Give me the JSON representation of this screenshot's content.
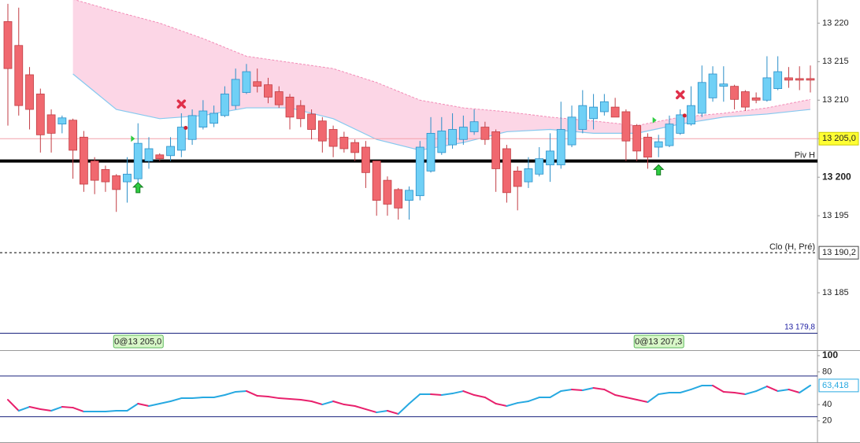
{
  "chart_data": {
    "type": "candlestick",
    "ylim": [
      13179.8,
      13223.0
    ],
    "yticks": [
      {
        "value": 13220,
        "label": "13 220"
      },
      {
        "value": 13215,
        "label": "13 215"
      },
      {
        "value": 13210,
        "label": "13 210"
      },
      {
        "value": 13205,
        "label": "13 205"
      },
      {
        "value": 13200,
        "label": "13 200"
      },
      {
        "value": 13195,
        "label": "13 195"
      },
      {
        "value": 13185,
        "label": "13 185"
      }
    ],
    "scale_min_label": "13 179,8",
    "up_color": "#6fd0f6",
    "up_edge": "#2b8fc8",
    "down_color": "#f0686f",
    "down_edge": "#c23d44",
    "candles": {
      "open": [
        13220.2,
        13217.1,
        13213.3,
        13210.8,
        13208.1,
        13206.9,
        13207.4,
        13205.2,
        13202.1,
        13201.0,
        13200.2,
        13199.4,
        13199.8,
        13202.1,
        13202.9,
        13202.8,
        13203.5,
        13204.9,
        13206.5,
        13207.0,
        13208.0,
        13209.3,
        13211.0,
        13212.4,
        13212.0,
        13211.1,
        13210.4,
        13209.3,
        13208.2,
        13207.3,
        13206.2,
        13205.2,
        13204.5,
        13203.9,
        13202.1,
        13199.6,
        13198.4,
        13197.0,
        13197.6,
        13200.8,
        13203.2,
        13204.2,
        13204.9,
        13205.9,
        13206.5,
        13205.9,
        13203.7,
        13200.8,
        13199.4,
        13200.4,
        13201.6,
        13201.6,
        13204.2,
        13206.2,
        13207.6,
        13208.5,
        13209.1,
        13208.5,
        13206.7,
        13205.2,
        13203.9,
        13204.1,
        13205.7,
        13206.9,
        13208.3,
        13210.3,
        13211.8,
        13211.8,
        13211.1,
        13210.3,
        13210.0,
        13211.5,
        13212.9,
        13212.8,
        13212.8
      ],
      "high": [
        13222.5,
        13222.0,
        13214.3,
        13211.5,
        13208.8,
        13208.0,
        13207.6,
        13206.0,
        13202.6,
        13201.5,
        13200.4,
        13202.6,
        13207.0,
        13205.2,
        13203.1,
        13205.2,
        13208.3,
        13208.8,
        13210.0,
        13209.3,
        13211.8,
        13214.1,
        13214.7,
        13214.1,
        13212.9,
        13211.8,
        13210.8,
        13210.0,
        13208.8,
        13207.8,
        13206.7,
        13205.9,
        13204.9,
        13204.7,
        13202.1,
        13200.1,
        13198.6,
        13198.8,
        13204.7,
        13207.8,
        13207.8,
        13208.3,
        13208.0,
        13208.8,
        13207.2,
        13206.2,
        13204.2,
        13201.4,
        13202.6,
        13203.9,
        13205.7,
        13209.8,
        13209.3,
        13211.3,
        13210.8,
        13210.8,
        13210.3,
        13208.8,
        13206.9,
        13205.7,
        13205.5,
        13208.0,
        13208.8,
        13211.8,
        13214.5,
        13214.4,
        13214.4,
        13212.0,
        13211.3,
        13211.0,
        13215.7,
        13215.7,
        13214.3,
        13214.4,
        13214.5
      ],
      "low": [
        13206.7,
        13208.0,
        13206.2,
        13203.2,
        13203.2,
        13205.7,
        13199.8,
        13198.1,
        13197.8,
        13198.1,
        13195.5,
        13196.7,
        13198.1,
        13201.1,
        13202.1,
        13202.1,
        13202.6,
        13204.2,
        13206.2,
        13206.5,
        13207.8,
        13208.8,
        13210.8,
        13211.0,
        13209.6,
        13209.0,
        13206.2,
        13206.5,
        13204.9,
        13203.2,
        13202.6,
        13203.2,
        13202.1,
        13198.6,
        13195.0,
        13195.0,
        13194.5,
        13194.5,
        13197.0,
        13200.6,
        13202.9,
        13203.7,
        13204.2,
        13205.5,
        13204.2,
        13198.1,
        13196.7,
        13195.7,
        13198.6,
        13200.1,
        13199.4,
        13201.1,
        13203.9,
        13205.7,
        13206.2,
        13208.0,
        13207.8,
        13202.1,
        13202.1,
        13201.1,
        13202.6,
        13203.9,
        13205.5,
        13206.7,
        13207.8,
        13209.8,
        13209.8,
        13208.8,
        13208.6,
        13209.6,
        13209.8,
        13211.3,
        13211.6,
        13211.3,
        13211.0
      ],
      "close": [
        13214.1,
        13209.3,
        13208.8,
        13205.5,
        13205.7,
        13207.7,
        13203.5,
        13199.1,
        13199.6,
        13199.4,
        13198.4,
        13200.4,
        13204.4,
        13203.7,
        13202.4,
        13204.0,
        13206.5,
        13208.0,
        13208.6,
        13208.3,
        13210.8,
        13212.7,
        13213.7,
        13211.8,
        13210.4,
        13209.4,
        13207.8,
        13207.6,
        13206.2,
        13204.7,
        13204.0,
        13203.7,
        13203.2,
        13200.6,
        13197.0,
        13196.5,
        13196.0,
        13198.3,
        13203.9,
        13205.7,
        13206.0,
        13206.2,
        13206.5,
        13207.2,
        13204.9,
        13201.1,
        13198.0,
        13198.8,
        13201.1,
        13202.4,
        13203.4,
        13206.2,
        13207.8,
        13209.3,
        13209.1,
        13209.8,
        13207.8,
        13204.7,
        13203.4,
        13202.6,
        13204.6,
        13206.9,
        13208.1,
        13209.3,
        13212.3,
        13213.4,
        13212.1,
        13210.1,
        13209.1,
        13210.0,
        13212.9,
        13213.7,
        13212.6,
        13212.6,
        13212.6
      ]
    },
    "band": {
      "x": [
        6,
        10,
        14,
        18,
        22,
        26,
        30,
        34,
        38,
        42,
        46,
        50,
        54,
        58,
        62,
        66,
        70,
        74
      ],
      "upper": [
        13223.1,
        13221.5,
        13220.0,
        13218.0,
        13215.7,
        13214.9,
        13214.1,
        13212.3,
        13210.0,
        13209.0,
        13208.5,
        13207.8,
        13207.3,
        13206.7,
        13207.8,
        13208.3,
        13209.0,
        13210.1
      ],
      "lower": [
        13213.4,
        13208.8,
        13207.6,
        13208.0,
        13209.0,
        13209.0,
        13207.6,
        13204.9,
        13203.5,
        13204.5,
        13205.9,
        13206.2,
        13205.7,
        13205.7,
        13206.9,
        13207.8,
        13208.2,
        13208.8
      ],
      "fill": "#fcd6e6",
      "upper_color": "#f28bb6",
      "lower_color": "#86c9ef"
    },
    "price_lines": [
      {
        "value": 13205.0,
        "label": "13 205,0",
        "color": "#f3a2aa",
        "style": "thin"
      },
      {
        "name": "Piv H",
        "value": 13202.1,
        "color": "#000000",
        "style": "thick"
      },
      {
        "name": "Clo (H, Pré)",
        "value": 13190.2,
        "label": "13 190,2",
        "color": "#000000",
        "style": "dashed"
      }
    ],
    "signals": [
      {
        "kind": "arrow",
        "index": 12,
        "price": 13198.6
      },
      {
        "kind": "arrow",
        "index": 60,
        "price": 13200.9
      },
      {
        "kind": "cross",
        "index": 16,
        "price": 13209.5
      },
      {
        "kind": "cross",
        "index": 62,
        "price": 13210.7
      },
      {
        "kind": "triangle",
        "index": 11.5,
        "price": 13205.0
      },
      {
        "kind": "triangle",
        "index": 59.6,
        "price": 13207.4
      },
      {
        "kind": "dot",
        "index": 16.4,
        "price": 13206.4
      },
      {
        "kind": "dot",
        "index": 62.4,
        "price": 13208.0
      }
    ],
    "trades": [
      {
        "index": 12,
        "label": "0@13 205,0"
      },
      {
        "index": 60,
        "label": "0@13 207,3"
      }
    ],
    "rsi": {
      "ylim": [
        -7.2,
        105.8
      ],
      "yticks": [
        20,
        40,
        80,
        100
      ],
      "levels": [
        25,
        75
      ],
      "up_color": "#27a9e1",
      "down_color": "#e8206c",
      "values": [
        45.9,
        32.4,
        37.2,
        34.3,
        32.4,
        37.2,
        36.2,
        31.4,
        31.4,
        31.4,
        32.4,
        32.4,
        41.1,
        38.2,
        41.1,
        44.0,
        47.8,
        47.8,
        48.8,
        48.8,
        51.7,
        55.6,
        56.6,
        50.7,
        49.8,
        47.8,
        46.9,
        45.9,
        44.0,
        40.1,
        44.0,
        40.1,
        38.2,
        34.3,
        30.4,
        32.4,
        28.5,
        41.1,
        52.7,
        52.7,
        51.7,
        53.6,
        56.5,
        51.7,
        48.8,
        41.1,
        38.2,
        42.0,
        44.0,
        48.8,
        48.8,
        56.5,
        58.5,
        57.5,
        60.4,
        58.5,
        51.7,
        48.8,
        45.9,
        43.0,
        52.7,
        54.6,
        54.6,
        58.5,
        63.3,
        63.3,
        55.6,
        54.6,
        52.7,
        56.5,
        62.3,
        56.5,
        58.5,
        54.6,
        63.418
      ],
      "value_labels": {
        "74": "63,418"
      }
    }
  }
}
